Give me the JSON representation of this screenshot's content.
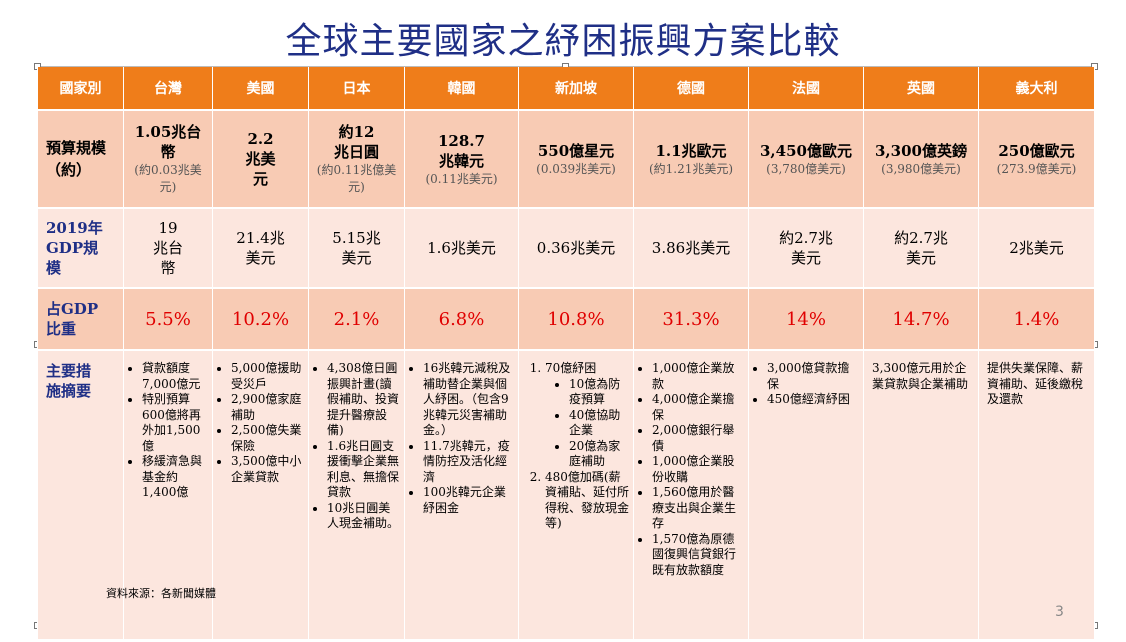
{
  "title": "全球主要國家之紓困振興方案比較",
  "header": [
    "國家別",
    "台灣",
    "美國",
    "日本",
    "韓國",
    "新加坡",
    "德國",
    "法國",
    "英國",
    "義大利"
  ],
  "budget": {
    "label": "預算規模（約）",
    "cells": [
      {
        "main": "1.05兆台幣",
        "sub": "(約0.03兆美元)"
      },
      {
        "main": "2.2兆美元",
        "sub": ""
      },
      {
        "main": "約12兆日圓",
        "sub": "(約0.11兆億美元)"
      },
      {
        "main": "128.7兆韓元",
        "sub": "(0.11兆美元)"
      },
      {
        "main": "550億星元",
        "sub": "(0.039兆美元)"
      },
      {
        "main": "1.1兆歐元",
        "sub": "(約1.21兆美元)"
      },
      {
        "main": "3,450億歐元",
        "sub": "(3,780億美元)"
      },
      {
        "main": "3,300億英鎊",
        "sub": "(3,980億美元)"
      },
      {
        "main": "250億歐元",
        "sub": "(273.9億美元)"
      }
    ]
  },
  "gdp": {
    "label": "2019年GDP規模",
    "values": [
      "19兆台幣",
      "21.4兆美元",
      "5.15兆美元",
      "1.6兆美元",
      "0.36兆美元",
      "3.86兆美元",
      "約2.7兆美元",
      "約2.7兆美元",
      "2兆美元"
    ]
  },
  "ratio": {
    "label": "占GDP比重",
    "values": [
      "5.5%",
      "10.2%",
      "2.1%",
      "6.8%",
      "10.8%",
      "31.3%",
      "14%",
      "14.7%",
      "1.4%"
    ]
  },
  "measures": {
    "label": "主要措施摘要",
    "taiwan": [
      "貸款額度7,000億元",
      "特別預算600億將再外加1,500億",
      "移緩濟急與基金約1,400億"
    ],
    "usa": [
      "5,000億援助受災戶",
      "2,900億家庭補助",
      "2,500億失業保險",
      "3,500億中小企業貸款"
    ],
    "japan": [
      "4,308億日圓振興計畫(讀假補助、投資提升醫療設備)",
      "1.6兆日圓支援衝擊企業無利息、無擔保貸款",
      "10兆日圓美人現金補助。"
    ],
    "korea": [
      "16兆韓元減稅及補助替企業與個人紓困。（包含9兆韓元災害補助金。）",
      "11.7兆韓元，疫情防控及活化經濟",
      "100兆韓元企業紓困金"
    ],
    "singapore": {
      "item1": "70億紓困",
      "sub1": [
        "10億為防疫預算",
        "40億協助企業",
        "20億為家庭補助"
      ],
      "item2": "480億加碼(薪資補貼、延付所得稅、發放現金等)"
    },
    "germany": [
      "1,000億企業放款",
      "4,000億企業擔保",
      "2,000億銀行舉債",
      "1,000億企業股份收購",
      "1,560億用於醫療支出與企業生存",
      "1,570億為原德國復興信貸銀行既有放款額度"
    ],
    "france": [
      "3,000億貸款擔保",
      "450億經濟紓困"
    ],
    "uk": "3,300億元用於企業貸款與企業補助",
    "italy": "提供失業保障、薪資補助、延後繳稅及還款"
  },
  "source": "資料來源：各新聞媒體",
  "page_number": "3",
  "colors": {
    "header_bg": "#ef7d1a",
    "row_dark": "#f8cbb4",
    "row_light": "#fce6de",
    "title": "#1f2f86",
    "ratio": "#e00000"
  }
}
